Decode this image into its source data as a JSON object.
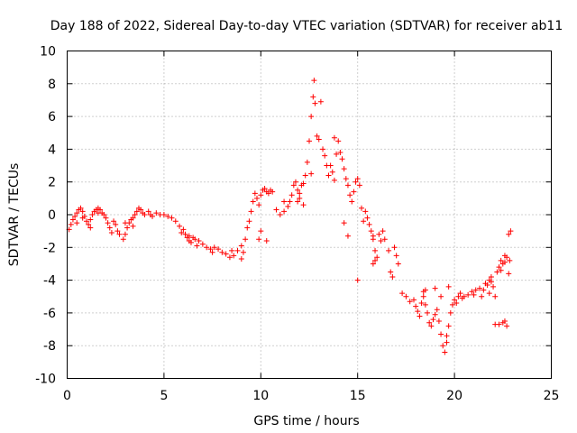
{
  "chart_data": {
    "type": "scatter",
    "title": "Day 188 of 2022, Sidereal Day-to-day VTEC variation (SDTVAR) for receiver ab11",
    "xlabel": "GPS time / hours",
    "ylabel": "SDTVAR / TECUs",
    "xlim": [
      0,
      25
    ],
    "ylim": [
      -10,
      10
    ],
    "xticks": [
      0,
      5,
      10,
      15,
      20,
      25
    ],
    "yticks": [
      -10,
      -8,
      -6,
      -4,
      -2,
      0,
      2,
      4,
      6,
      8,
      10
    ],
    "xtick_labels": [
      "0",
      "5",
      "10",
      "15",
      "20",
      "25"
    ],
    "ytick_labels": [
      "-10",
      "-8",
      "-6",
      "-4",
      "-2",
      "0",
      "2",
      "4",
      "6",
      "8",
      "10"
    ],
    "grid": true,
    "marker": "+",
    "color": "#ff0000",
    "series": [
      {
        "name": "SDTVAR",
        "points": [
          [
            0.1,
            -0.9
          ],
          [
            0.2,
            -0.6
          ],
          [
            0.3,
            -0.3
          ],
          [
            0.4,
            -0.1
          ],
          [
            0.5,
            0.1
          ],
          [
            0.6,
            0.3
          ],
          [
            0.7,
            0.4
          ],
          [
            0.8,
            0.2
          ],
          [
            0.9,
            -0.1
          ],
          [
            1.0,
            -0.4
          ],
          [
            1.1,
            -0.6
          ],
          [
            1.2,
            -0.3
          ],
          [
            1.3,
            0.0
          ],
          [
            1.4,
            0.2
          ],
          [
            1.5,
            0.3
          ],
          [
            1.6,
            0.4
          ],
          [
            1.7,
            0.3
          ],
          [
            1.8,
            0.1
          ],
          [
            1.9,
            0.0
          ],
          [
            2.0,
            -0.2
          ],
          [
            2.1,
            -0.5
          ],
          [
            2.2,
            -0.8
          ],
          [
            2.3,
            -1.1
          ],
          [
            2.4,
            -0.4
          ],
          [
            2.5,
            -0.6
          ],
          [
            2.7,
            -1.2
          ],
          [
            2.9,
            -1.5
          ],
          [
            3.0,
            -1.2
          ],
          [
            3.1,
            -0.8
          ],
          [
            3.2,
            -0.5
          ],
          [
            3.3,
            -0.3
          ],
          [
            3.4,
            -0.2
          ],
          [
            3.5,
            0.0
          ],
          [
            3.6,
            0.2
          ],
          [
            3.7,
            0.4
          ],
          [
            3.8,
            0.3
          ],
          [
            3.9,
            0.1
          ],
          [
            4.0,
            0.0
          ],
          [
            4.2,
            0.2
          ],
          [
            4.4,
            -0.1
          ],
          [
            4.6,
            0.1
          ],
          [
            4.8,
            0.0
          ],
          [
            5.0,
            0.0
          ],
          [
            5.2,
            -0.1
          ],
          [
            5.4,
            -0.2
          ],
          [
            5.6,
            -0.4
          ],
          [
            5.8,
            -0.7
          ],
          [
            6.0,
            -0.9
          ],
          [
            6.1,
            -1.2
          ],
          [
            6.2,
            -1.4
          ],
          [
            6.3,
            -1.6
          ],
          [
            6.4,
            -1.7
          ],
          [
            6.5,
            -1.4
          ],
          [
            6.6,
            -1.5
          ],
          [
            6.8,
            -1.6
          ],
          [
            7.0,
            -1.8
          ],
          [
            7.2,
            -2.0
          ],
          [
            7.4,
            -2.1
          ],
          [
            7.6,
            -2.0
          ],
          [
            7.8,
            -2.1
          ],
          [
            8.0,
            -2.3
          ],
          [
            8.2,
            -2.4
          ],
          [
            8.4,
            -2.6
          ],
          [
            8.6,
            -2.5
          ],
          [
            8.8,
            -2.2
          ],
          [
            9.0,
            -1.9
          ],
          [
            9.2,
            -1.5
          ],
          [
            9.3,
            -0.8
          ],
          [
            9.4,
            -0.4
          ],
          [
            9.5,
            0.2
          ],
          [
            9.6,
            0.8
          ],
          [
            9.7,
            1.3
          ],
          [
            9.8,
            1.0
          ],
          [
            9.9,
            0.6
          ],
          [
            10.0,
            1.2
          ],
          [
            10.1,
            1.5
          ],
          [
            10.2,
            1.6
          ],
          [
            10.3,
            1.4
          ],
          [
            10.4,
            1.3
          ],
          [
            10.5,
            1.5
          ],
          [
            10.6,
            1.4
          ],
          [
            10.8,
            0.3
          ],
          [
            11.0,
            0.0
          ],
          [
            11.2,
            0.2
          ],
          [
            11.4,
            0.5
          ],
          [
            11.5,
            0.8
          ],
          [
            11.6,
            1.2
          ],
          [
            11.7,
            1.8
          ],
          [
            11.8,
            2.0
          ],
          [
            11.9,
            1.5
          ],
          [
            12.0,
            1.3
          ],
          [
            12.1,
            1.8
          ],
          [
            12.2,
            1.9
          ],
          [
            12.3,
            2.4
          ],
          [
            12.4,
            3.2
          ],
          [
            12.5,
            4.5
          ],
          [
            12.6,
            6.0
          ],
          [
            12.7,
            7.2
          ],
          [
            12.75,
            8.2
          ],
          [
            12.8,
            6.8
          ],
          [
            12.9,
            4.8
          ],
          [
            13.0,
            4.6
          ],
          [
            13.1,
            6.9
          ],
          [
            13.2,
            4.0
          ],
          [
            13.3,
            3.6
          ],
          [
            13.4,
            3.0
          ],
          [
            13.5,
            2.4
          ],
          [
            13.6,
            3.0
          ],
          [
            13.7,
            2.6
          ],
          [
            13.8,
            2.1
          ],
          [
            13.9,
            3.7
          ],
          [
            14.0,
            4.5
          ],
          [
            14.1,
            3.8
          ],
          [
            14.2,
            3.4
          ],
          [
            14.3,
            2.8
          ],
          [
            14.4,
            2.2
          ],
          [
            14.5,
            1.8
          ],
          [
            14.6,
            1.2
          ],
          [
            14.7,
            0.8
          ],
          [
            14.8,
            1.4
          ],
          [
            14.9,
            2.0
          ],
          [
            15.0,
            2.2
          ],
          [
            15.1,
            1.8
          ],
          [
            15.2,
            0.4
          ],
          [
            15.3,
            -0.4
          ],
          [
            15.4,
            0.2
          ],
          [
            15.5,
            -0.2
          ],
          [
            15.6,
            -0.6
          ],
          [
            15.7,
            -1.0
          ],
          [
            15.8,
            -1.5
          ],
          [
            15.9,
            -2.2
          ],
          [
            16.0,
            -2.6
          ],
          [
            16.1,
            -1.2
          ],
          [
            16.2,
            -1.6
          ],
          [
            16.3,
            -1.0
          ],
          [
            16.4,
            -1.5
          ],
          [
            16.6,
            -2.2
          ],
          [
            16.7,
            -3.5
          ],
          [
            16.8,
            -3.8
          ],
          [
            16.9,
            -2.0
          ],
          [
            17.0,
            -2.5
          ],
          [
            17.1,
            -3.0
          ],
          [
            17.3,
            -4.8
          ],
          [
            17.5,
            -5.0
          ],
          [
            17.7,
            -5.3
          ],
          [
            17.9,
            -5.2
          ],
          [
            18.0,
            -5.6
          ],
          [
            18.1,
            -5.9
          ],
          [
            18.2,
            -6.2
          ],
          [
            18.3,
            -5.4
          ],
          [
            18.4,
            -5.0
          ],
          [
            18.5,
            -5.5
          ],
          [
            18.6,
            -6.0
          ],
          [
            18.7,
            -6.6
          ],
          [
            18.8,
            -6.8
          ],
          [
            18.9,
            -6.4
          ],
          [
            19.0,
            -6.1
          ],
          [
            19.1,
            -5.8
          ],
          [
            19.2,
            -6.5
          ],
          [
            19.3,
            -7.3
          ],
          [
            19.4,
            -8.0
          ],
          [
            19.5,
            -8.4
          ],
          [
            19.6,
            -7.8
          ],
          [
            19.7,
            -6.8
          ],
          [
            19.8,
            -6.0
          ],
          [
            19.9,
            -5.5
          ],
          [
            20.0,
            -5.2
          ],
          [
            20.1,
            -5.4
          ],
          [
            20.2,
            -5.0
          ],
          [
            20.3,
            -4.8
          ],
          [
            20.4,
            -5.1
          ],
          [
            20.5,
            -5.0
          ],
          [
            20.7,
            -4.9
          ],
          [
            20.9,
            -4.7
          ],
          [
            21.0,
            -4.9
          ],
          [
            21.1,
            -4.6
          ],
          [
            21.3,
            -4.5
          ],
          [
            21.5,
            -4.6
          ],
          [
            21.6,
            -4.2
          ],
          [
            21.7,
            -4.3
          ],
          [
            21.8,
            -4.0
          ],
          [
            21.9,
            -4.1
          ],
          [
            22.0,
            -4.4
          ],
          [
            22.1,
            -5.0
          ],
          [
            22.2,
            -3.5
          ],
          [
            22.3,
            -3.2
          ],
          [
            22.4,
            -3.4
          ],
          [
            22.5,
            -3.0
          ],
          [
            22.6,
            -2.9
          ],
          [
            22.7,
            -2.6
          ],
          [
            22.8,
            -3.6
          ],
          [
            22.85,
            -2.8
          ],
          [
            22.9,
            -1.0
          ],
          [
            22.8,
            -1.2
          ],
          [
            22.6,
            -2.5
          ],
          [
            22.4,
            -2.8
          ],
          [
            22.1,
            -6.7
          ],
          [
            22.3,
            -6.7
          ],
          [
            22.5,
            -6.6
          ],
          [
            22.6,
            -6.5
          ],
          [
            22.7,
            -6.8
          ],
          [
            21.9,
            -3.8
          ],
          [
            21.8,
            -4.8
          ],
          [
            21.4,
            -5.0
          ],
          [
            19.7,
            -4.4
          ],
          [
            18.5,
            -4.6
          ],
          [
            18.4,
            -4.7
          ],
          [
            19.0,
            -4.5
          ],
          [
            19.3,
            -5.0
          ],
          [
            19.6,
            -7.4
          ],
          [
            15.0,
            -4.0
          ],
          [
            15.8,
            -1.3
          ],
          [
            15.8,
            -3.0
          ],
          [
            15.9,
            -2.8
          ],
          [
            14.3,
            -0.5
          ],
          [
            14.5,
            -1.3
          ],
          [
            13.8,
            4.7
          ],
          [
            12.6,
            2.5
          ],
          [
            12.2,
            0.6
          ],
          [
            11.9,
            0.8
          ],
          [
            12.0,
            1.0
          ],
          [
            11.2,
            0.8
          ],
          [
            9.9,
            -1.5
          ],
          [
            10.3,
            -1.6
          ],
          [
            10.0,
            -1.0
          ],
          [
            9.1,
            -2.3
          ],
          [
            8.5,
            -2.2
          ],
          [
            9.0,
            -2.7
          ],
          [
            7.5,
            -2.3
          ],
          [
            6.7,
            -1.9
          ],
          [
            6.3,
            -1.3
          ],
          [
            5.9,
            -1.1
          ],
          [
            3.0,
            -0.5
          ],
          [
            2.6,
            -1.0
          ],
          [
            1.6,
            0.1
          ],
          [
            1.2,
            -0.8
          ],
          [
            0.5,
            -0.5
          ],
          [
            0.8,
            -0.2
          ],
          [
            3.4,
            -0.7
          ],
          [
            4.3,
            0.0
          ]
        ]
      }
    ]
  }
}
